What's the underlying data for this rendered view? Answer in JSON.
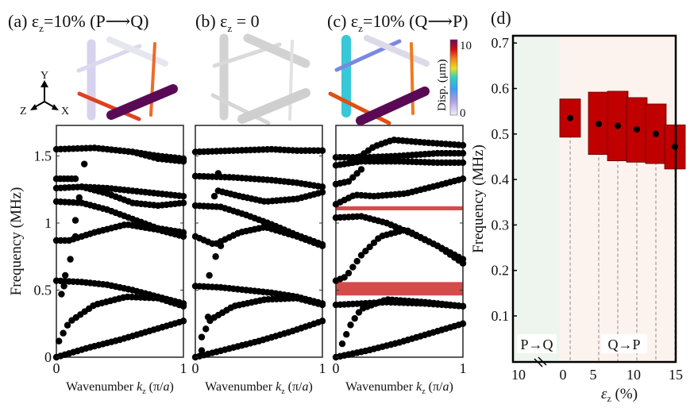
{
  "panels": {
    "a": {
      "label": "(a)",
      "title_pre": "ε",
      "title_sub": "z",
      "title_post": "=10% (P⟶Q)"
    },
    "b": {
      "label": "(b)",
      "title_pre": "ε",
      "title_sub": "z",
      "title_post": " = 0"
    },
    "c": {
      "label": "(c)",
      "title_pre": "ε",
      "title_sub": "z",
      "title_post": "=10% (Q⟶P)"
    },
    "d": {
      "label": "(d)"
    }
  },
  "axes_triad": {
    "y": "Y",
    "z": "Z",
    "x": "X"
  },
  "colorbar": {
    "label": "Disp. (μm)",
    "max": "10",
    "min": "0"
  },
  "chart_data": [
    {
      "type": "scatter",
      "id": "band-a",
      "title": "ε_z=10% (P→Q)",
      "xlabel": "Wavenumber k_z (π/a)",
      "ylabel": "Frequency (MHz)",
      "xlim": [
        0,
        1
      ],
      "ylim": [
        0,
        1.6
      ],
      "xticks": [
        "0",
        "1"
      ],
      "yticks": [
        "0",
        "0.5",
        "1",
        "1.5"
      ],
      "bands": [
        {
          "k": [
            0,
            0.25,
            0.5,
            0.75,
            1
          ],
          "f": [
            0,
            0.07,
            0.13,
            0.2,
            0.27
          ]
        },
        {
          "k": [
            0.02,
            0.1,
            0.3,
            0.55,
            0.8,
            1
          ],
          "f": [
            0.12,
            0.26,
            0.39,
            0.45,
            0.44,
            0.38
          ]
        },
        {
          "k": [
            0,
            0.2,
            0.4,
            0.6,
            0.8,
            1
          ],
          "f": [
            0.57,
            0.56,
            0.54,
            0.5,
            0.45,
            0.4
          ]
        },
        {
          "k": [
            0,
            0.1,
            0.3,
            0.55,
            0.8,
            1
          ],
          "f": [
            0.87,
            0.87,
            0.93,
            0.99,
            0.95,
            0.9
          ]
        },
        {
          "k": [
            0,
            0.2,
            0.4,
            0.6,
            0.8,
            1
          ],
          "f": [
            1.16,
            1.15,
            1.1,
            1.03,
            0.96,
            0.93
          ]
        },
        {
          "k": [
            0.2,
            0.4,
            0.6,
            0.8,
            1
          ],
          "f": [
            1.27,
            1.22,
            1.15,
            1.13,
            1.15
          ]
        },
        {
          "k": [
            0,
            0.2,
            0.4,
            0.6,
            0.8,
            1
          ],
          "f": [
            1.26,
            1.27,
            1.26,
            1.24,
            1.22,
            1.2
          ]
        },
        {
          "k": [
            0,
            0.15
          ],
          "f": [
            1.33,
            1.33
          ]
        },
        {
          "k": [
            0,
            0.3,
            0.6,
            0.8,
            1
          ],
          "f": [
            1.55,
            1.56,
            1.53,
            1.5,
            1.48
          ]
        },
        {
          "k": [
            0.6,
            0.8,
            1
          ],
          "f": [
            1.53,
            1.48,
            1.46
          ]
        }
      ],
      "isolated": [
        {
          "k": 0.07,
          "f": 0.61
        },
        {
          "k": 0.04,
          "f": 0.47
        },
        {
          "k": 0.11,
          "f": 0.73
        },
        {
          "k": 0.15,
          "f": 0.9
        },
        {
          "k": 0.15,
          "f": 1.02
        },
        {
          "k": 0.18,
          "f": 1.19
        },
        {
          "k": 0.22,
          "f": 1.44
        },
        {
          "k": 0.06,
          "f": 0.53
        }
      ],
      "bandgaps": []
    },
    {
      "type": "scatter",
      "id": "band-b",
      "title": "ε_z = 0",
      "xlabel": "Wavenumber k_z (π/a)",
      "xlim": [
        0,
        1
      ],
      "ylim": [
        0,
        1.6
      ],
      "xticks": [
        "0",
        "1"
      ],
      "bands": [
        {
          "k": [
            0,
            0.25,
            0.5,
            0.75,
            1
          ],
          "f": [
            0,
            0.06,
            0.12,
            0.19,
            0.27
          ]
        },
        {
          "k": [
            0.05,
            0.12,
            0.3,
            0.55,
            0.8,
            1
          ],
          "f": [
            0.15,
            0.28,
            0.38,
            0.43,
            0.44,
            0.39
          ]
        },
        {
          "k": [
            0,
            0.2,
            0.4,
            0.6,
            0.8,
            1
          ],
          "f": [
            0.53,
            0.52,
            0.5,
            0.48,
            0.45,
            0.4
          ]
        },
        {
          "k": [
            0,
            0.15,
            0.35,
            0.55,
            0.8,
            1
          ],
          "f": [
            0.9,
            0.84,
            0.93,
            0.97,
            0.9,
            0.83
          ]
        },
        {
          "k": [
            0,
            0.2,
            0.4,
            0.6,
            0.8,
            1
          ],
          "f": [
            1.13,
            1.12,
            1.06,
            0.99,
            0.91,
            0.84
          ]
        },
        {
          "k": [
            0.18,
            0.35,
            0.55,
            0.8,
            1
          ],
          "f": [
            1.24,
            1.2,
            1.16,
            1.18,
            1.23
          ]
        },
        {
          "k": [
            0,
            0.3,
            0.6,
            0.8,
            1
          ],
          "f": [
            1.35,
            1.34,
            1.32,
            1.3,
            1.27
          ]
        },
        {
          "k": [
            0,
            0.3,
            0.6,
            0.8,
            1
          ],
          "f": [
            1.53,
            1.54,
            1.55,
            1.54,
            1.54
          ]
        }
      ],
      "isolated": [
        {
          "k": 0.05,
          "f": 0.05
        },
        {
          "k": 0.1,
          "f": 0.3
        },
        {
          "k": 0.11,
          "f": 0.61
        },
        {
          "k": 0.16,
          "f": 0.75
        },
        {
          "k": 0.2,
          "f": 0.83
        },
        {
          "k": 0.18,
          "f": 1.37
        },
        {
          "k": 0.15,
          "f": 1.2
        }
      ],
      "bandgaps": []
    },
    {
      "type": "scatter",
      "id": "band-c",
      "title": "ε_z=10% (Q→P)",
      "xlabel": "Wavenumber k_z (π/a)",
      "xlim": [
        0,
        1
      ],
      "ylim": [
        0,
        1.6
      ],
      "xticks": [
        "0",
        "1"
      ],
      "bands": [
        {
          "k": [
            0,
            0.25,
            0.5,
            0.75,
            1
          ],
          "f": [
            0,
            0.05,
            0.11,
            0.18,
            0.25
          ]
        },
        {
          "k": [
            0.05,
            0.12,
            0.2,
            0.4,
            0.7,
            1
          ],
          "f": [
            0.1,
            0.25,
            0.36,
            0.43,
            0.41,
            0.38
          ]
        },
        {
          "k": [
            0,
            0.2,
            0.4,
            0.7,
            1
          ],
          "f": [
            0.39,
            0.4,
            0.41,
            0.4,
            0.38
          ]
        },
        {
          "k": [
            0,
            0.08,
            0.2,
            0.35,
            0.55,
            0.8,
            1
          ],
          "f": [
            0.57,
            0.6,
            0.76,
            0.9,
            0.95,
            0.83,
            0.7
          ]
        },
        {
          "k": [
            0,
            0.2,
            0.4,
            0.6,
            0.8,
            1
          ],
          "f": [
            1.04,
            1.05,
            1.0,
            0.92,
            0.83,
            0.73
          ]
        },
        {
          "k": [
            0,
            0.15,
            0.3,
            0.55,
            0.8,
            1
          ],
          "f": [
            1.14,
            1.21,
            1.2,
            1.22,
            1.28,
            1.33
          ]
        },
        {
          "k": [
            0,
            0.1,
            0.2
          ],
          "f": [
            1.29,
            1.31,
            1.4
          ]
        },
        {
          "k": [
            0,
            0.2,
            0.5,
            0.8,
            1
          ],
          "f": [
            1.43,
            1.46,
            1.46,
            1.45,
            1.45
          ]
        },
        {
          "k": [
            0,
            0.25,
            0.5,
            0.8,
            1
          ],
          "f": [
            1.49,
            1.49,
            1.5,
            1.52,
            1.52
          ]
        },
        {
          "k": [
            0.12,
            0.3,
            0.45,
            0.7,
            1
          ],
          "f": [
            1.45,
            1.57,
            1.62,
            1.6,
            1.58
          ]
        }
      ],
      "isolated": [],
      "bandgaps": [
        {
          "from": 1.095,
          "to": 1.125
        },
        {
          "from": 0.46,
          "to": 0.56
        }
      ]
    },
    {
      "type": "bar",
      "id": "gap-range",
      "xlabel": "ε_z (%)",
      "ylabel": "Frequency (MHz)",
      "ylim": [
        0.01,
        0.7
      ],
      "yticks": [
        "0.1",
        "0.2",
        "0.3",
        "0.4",
        "0.5",
        "0.6",
        "0.7"
      ],
      "xticks": [
        "10",
        "0",
        "5",
        "10",
        "15"
      ],
      "regions": [
        {
          "label": "P→Q",
          "color": "#eef5ee"
        },
        {
          "label": "Q→P",
          "color": "#fcf3ee"
        }
      ],
      "strain": [
        1.25,
        5,
        7.5,
        10,
        12.5,
        15
      ],
      "gap_low": [
        0.493,
        0.455,
        0.441,
        0.438,
        0.435,
        0.423
      ],
      "gap_high": [
        0.577,
        0.592,
        0.594,
        0.58,
        0.566,
        0.52
      ],
      "center": [
        0.535,
        0.522,
        0.518,
        0.51,
        0.5,
        0.472
      ],
      "bar_color": "#c00000"
    }
  ]
}
